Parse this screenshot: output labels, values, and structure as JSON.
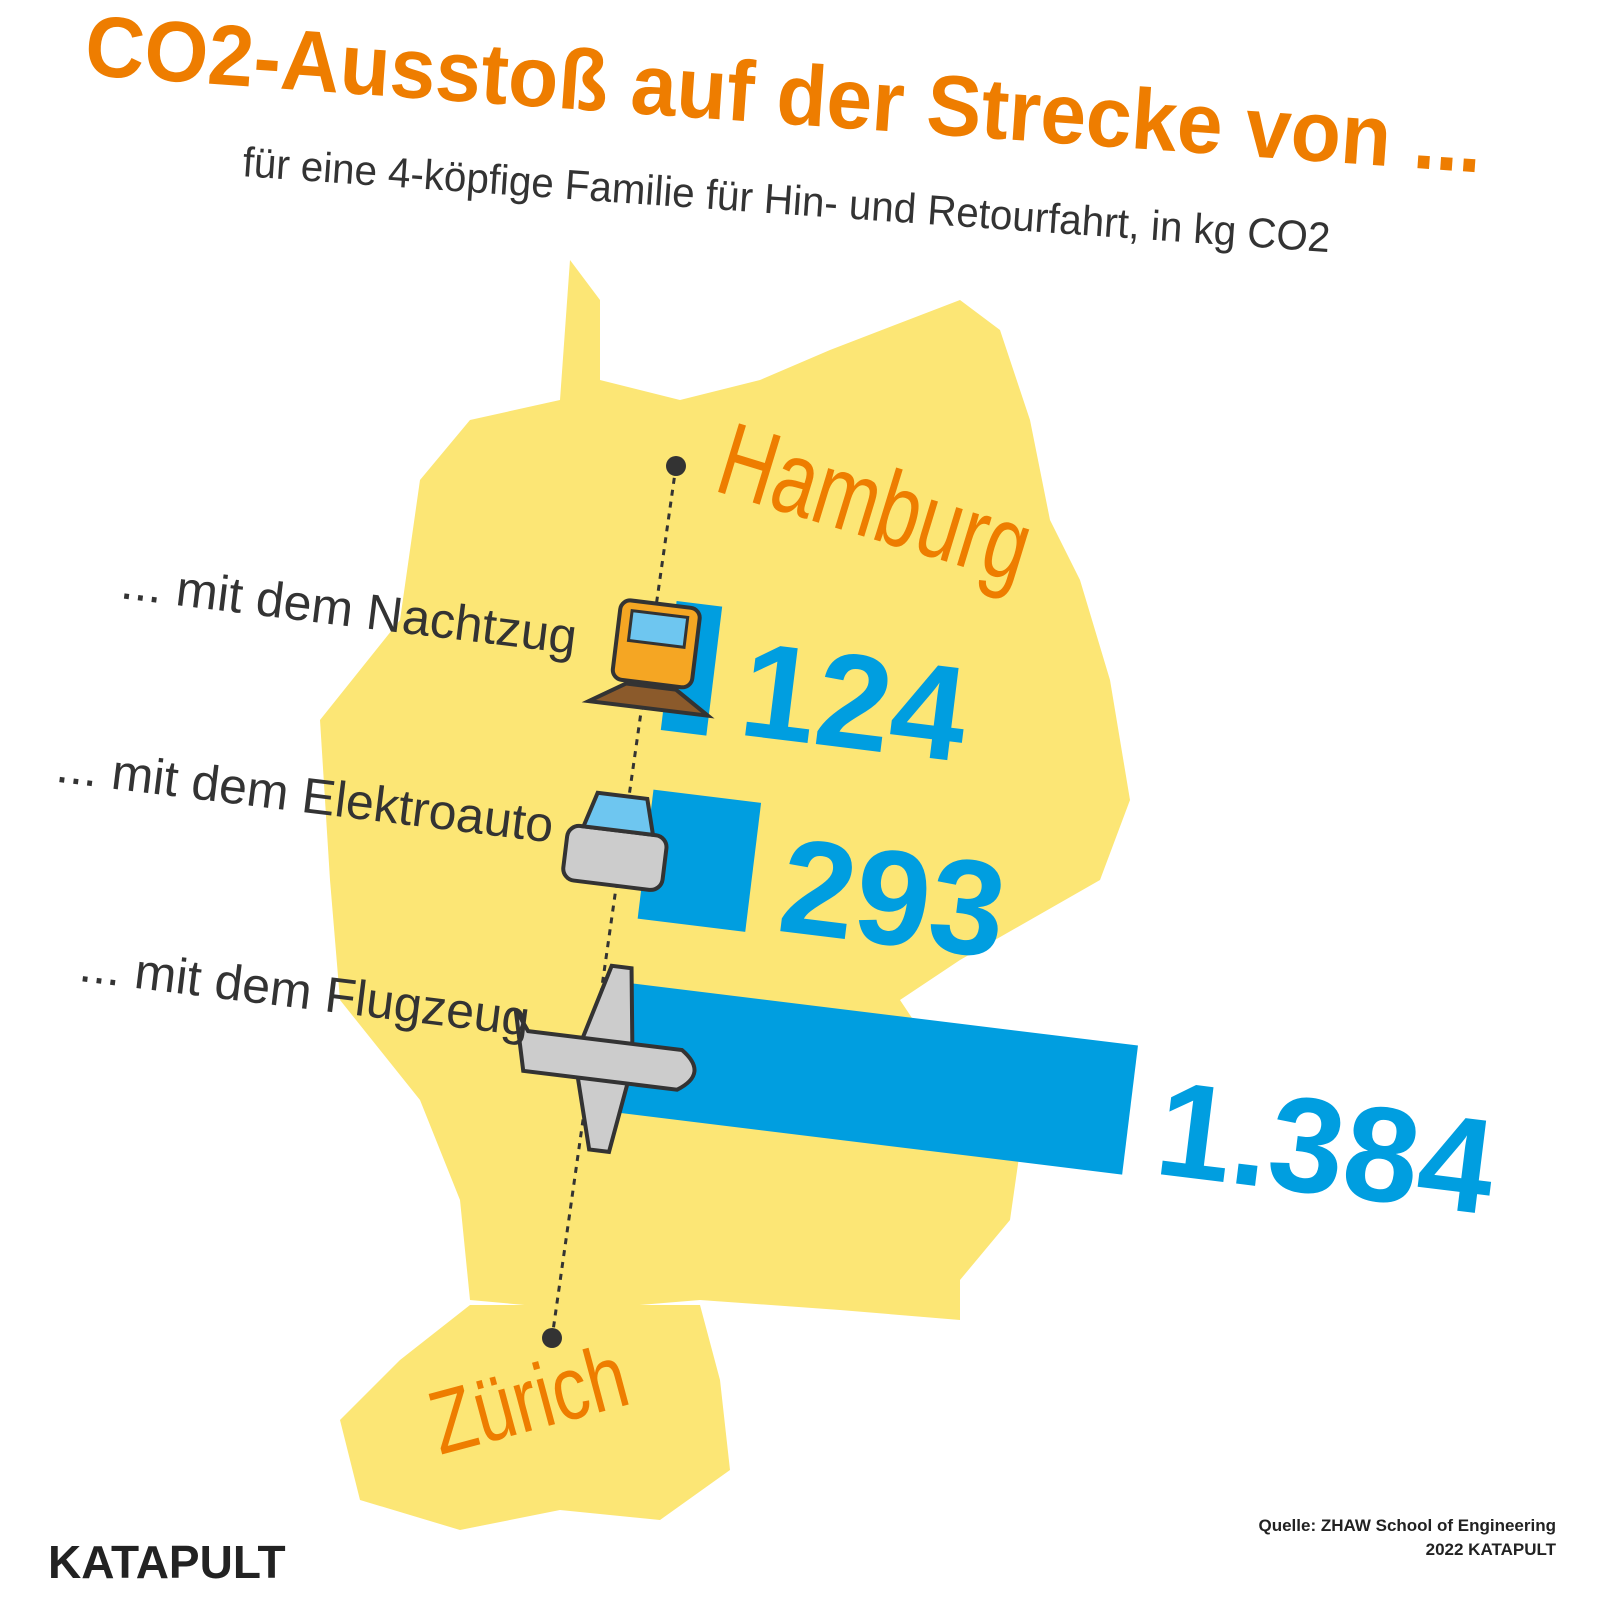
{
  "chart_data": {
    "type": "bar",
    "title": "CO2-Ausstoß auf der Strecke von ...",
    "subtitle": "für eine 4-köpfige Familie für Hin- und Retourfahrt, in kg CO2",
    "from": "Hamburg",
    "to": "Zürich",
    "categories": [
      "... mit dem Nachtzug",
      "... mit dem Elektroauto",
      "... mit dem Flugzeug"
    ],
    "values": [
      124,
      293,
      1384
    ],
    "value_labels": [
      "124",
      "293",
      "1.384"
    ],
    "color": "#009ee0",
    "logo": "KATAPULT",
    "source": "Quelle: ZHAW School of Engineering",
    "copyright": "2022 KATAPULT"
  }
}
